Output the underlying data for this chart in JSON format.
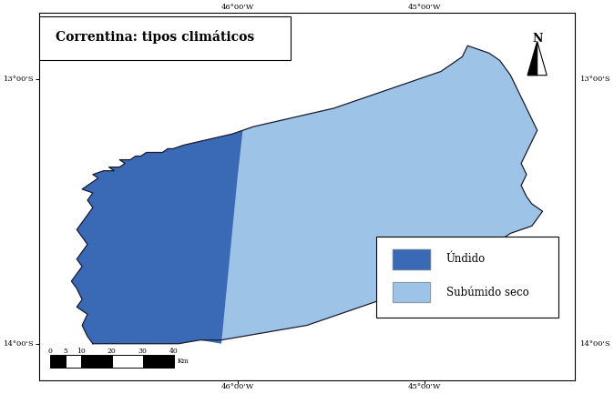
{
  "title": "Correntina: tipos climáticos",
  "title_fontsize": 10,
  "background_color": "#ffffff",
  "map_background": "#ffffff",
  "umido_color": "#3A6AB5",
  "subumido_color": "#9DC3E6",
  "border_color": "#1a1a30",
  "legend_labels": [
    "Úndido",
    "Subúmido seco"
  ],
  "scale_values": [
    0,
    5,
    10,
    20,
    30,
    40
  ],
  "scale_unit": "Km",
  "coord_top": [
    "46°00'W",
    "45°00'W"
  ],
  "coord_bottom": [
    "46°00'W",
    "45°00'W"
  ],
  "coord_left": [
    "13°00'S",
    "14°00'S"
  ],
  "coord_right": [
    "13°00'S",
    "14°00'S"
  ]
}
